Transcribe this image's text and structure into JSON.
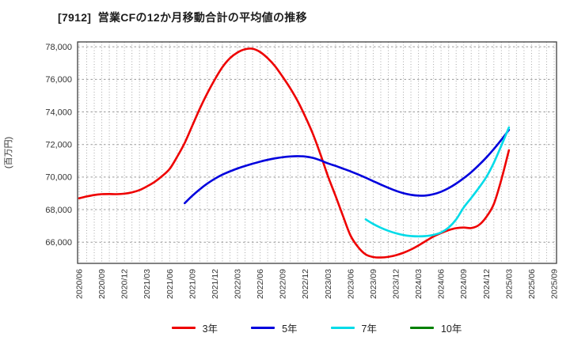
{
  "title": "[7912]  営業CFの12か月移動合計の平均値の推移",
  "chart_data": {
    "type": "line",
    "title": "[7912]  営業CFの12か月移動合計の平均値の推移",
    "xlabel": "",
    "ylabel": "(百万円)",
    "ylim": [
      64700,
      78300
    ],
    "yticks": [
      66000,
      68000,
      70000,
      72000,
      74000,
      76000,
      78000
    ],
    "ytick_labels": [
      "66,000",
      "68,000",
      "70,000",
      "72,000",
      "74,000",
      "76,000",
      "78,000"
    ],
    "xtick_labels": [
      "2020/06",
      "2020/09",
      "2020/12",
      "2021/03",
      "2021/06",
      "2021/09",
      "2021/12",
      "2022/03",
      "2022/06",
      "2022/09",
      "2022/12",
      "2023/03",
      "2023/06",
      "2023/09",
      "2023/12",
      "2024/03",
      "2024/06",
      "2024/09",
      "2024/12",
      "2025/03",
      "2025/06",
      "2025/09"
    ],
    "x_interval": "monthly",
    "x_month_span": 63,
    "grid": true,
    "grid_color_v": "#a8a8a8",
    "grid_color_h": "#9a9a9a",
    "border_color": "#3f3f3f",
    "legend_position": "bottom",
    "series": [
      {
        "name": "3年",
        "key": "3y",
        "color": "#ee0000",
        "start_month": "2020/06",
        "start_index": 0,
        "values": [
          68700,
          68810,
          68900,
          68950,
          68960,
          68950,
          68980,
          69060,
          69200,
          69430,
          69700,
          70060,
          70500,
          71250,
          72100,
          73150,
          74200,
          75150,
          76000,
          76750,
          77300,
          77650,
          77850,
          77880,
          77680,
          77300,
          76800,
          76150,
          75450,
          74650,
          73700,
          72650,
          71400,
          70050,
          68850,
          67600,
          66400,
          65700,
          65250,
          65090,
          65060,
          65100,
          65200,
          65350,
          65550,
          65800,
          66080,
          66350,
          66560,
          66740,
          66860,
          66900,
          66870,
          67050,
          67550,
          68350,
          69850,
          71650
        ]
      },
      {
        "name": "5年",
        "key": "5y",
        "color": "#0000dd",
        "start_month": "2021/08",
        "start_index": 14,
        "values": [
          68400,
          68850,
          69250,
          69600,
          69900,
          70150,
          70350,
          70530,
          70680,
          70820,
          70950,
          71060,
          71150,
          71220,
          71265,
          71285,
          71260,
          71180,
          71030,
          70840,
          70690,
          70520,
          70350,
          70160,
          69960,
          69750,
          69540,
          69340,
          69160,
          69010,
          68910,
          68860,
          68870,
          68950,
          69100,
          69320,
          69600,
          69930,
          70300,
          70730,
          71200,
          71720,
          72290,
          72900
        ]
      },
      {
        "name": "7年",
        "key": "7y",
        "color": "#00dbe8",
        "start_month": "2023/08",
        "start_index": 38,
        "values": [
          67400,
          67120,
          66890,
          66700,
          66550,
          66440,
          66380,
          66360,
          66380,
          66450,
          66600,
          66900,
          67400,
          68130,
          68720,
          69330,
          70000,
          70880,
          71940,
          73050
        ]
      },
      {
        "name": "10年",
        "key": "10y",
        "color": "#008000",
        "start_month": "",
        "start_index": 0,
        "values": []
      }
    ]
  }
}
